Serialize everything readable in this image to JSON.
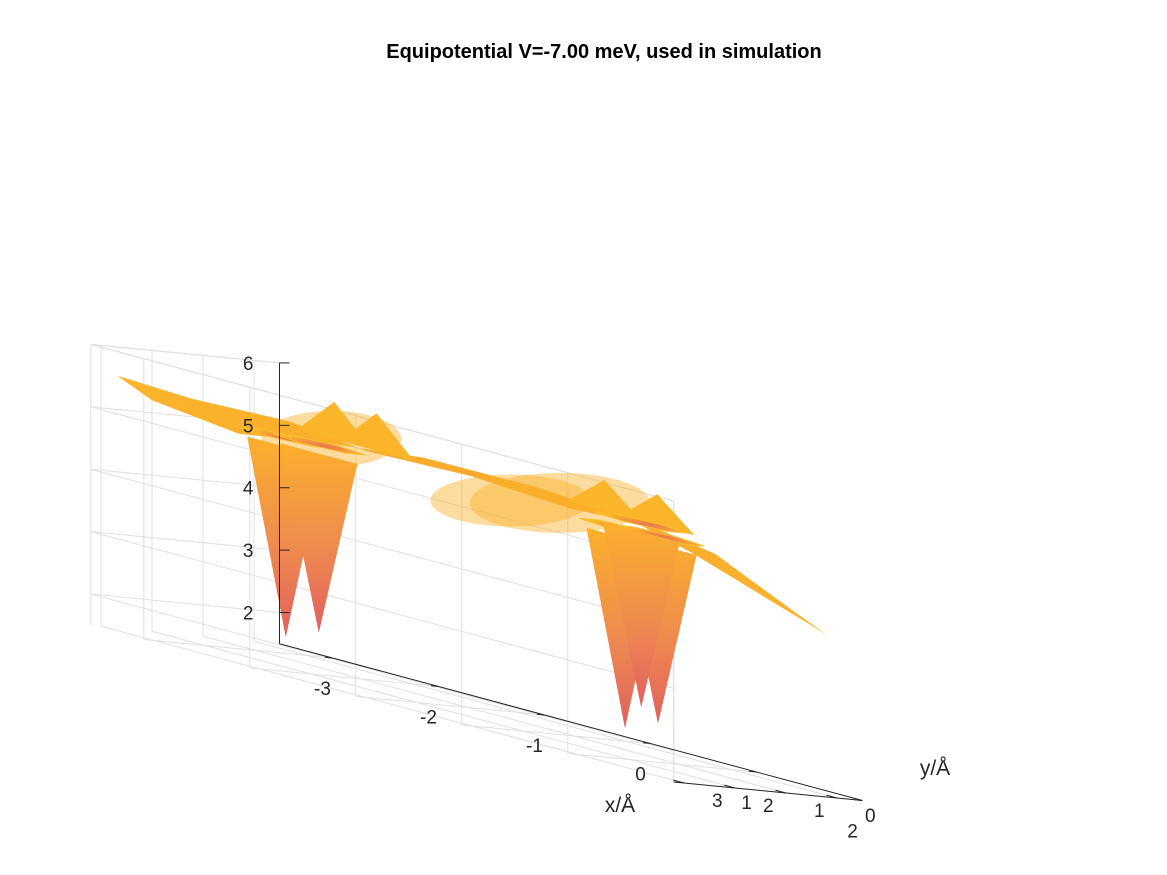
{
  "chart_data": {
    "type": "surface",
    "title": "Equipotential V=-7.00 meV, used in simulation",
    "xlabel": "x/Å",
    "ylabel": "y/Å",
    "zlabel": "",
    "xlim": [
      -3.5,
      2
    ],
    "ylim": [
      -0.5,
      3.2
    ],
    "zlim": [
      1.5,
      6
    ],
    "x_ticks": [
      "-3",
      "-2",
      "-1",
      "0",
      "1",
      "2"
    ],
    "y_ticks": [
      "0",
      "1",
      "2",
      "3"
    ],
    "z_ticks": [
      "2",
      "3",
      "4",
      "5",
      "6"
    ],
    "grid": true,
    "colormap": [
      "#e0605e",
      "#ef8a4f",
      "#f9ac37",
      "#fdbb27"
    ],
    "surface": {
      "base_height_z": 5.5,
      "height_range_z": [
        1.7,
        6.1
      ],
      "dips": [
        {
          "x": -3.2,
          "y": 0.0,
          "z_min": 1.7
        },
        {
          "x": -2.6,
          "y": 0.6,
          "z_min": 2.0
        },
        {
          "x": 0.0,
          "y": 0.0,
          "z_min": 1.7
        },
        {
          "x": 0.6,
          "y": 0.6,
          "z_min": 2.0
        },
        {
          "x": 1.5,
          "y": 2.8,
          "z_min": 2.5
        }
      ],
      "peaks": [
        {
          "x": -1.3,
          "y": 3.0,
          "z": 6.1
        },
        {
          "x": -0.9,
          "y": 3.0,
          "z": 6.1
        },
        {
          "x": 1.2,
          "y": 2.9,
          "z": 6.0
        },
        {
          "x": 1.7,
          "y": 2.9,
          "z": 6.0
        }
      ]
    }
  }
}
